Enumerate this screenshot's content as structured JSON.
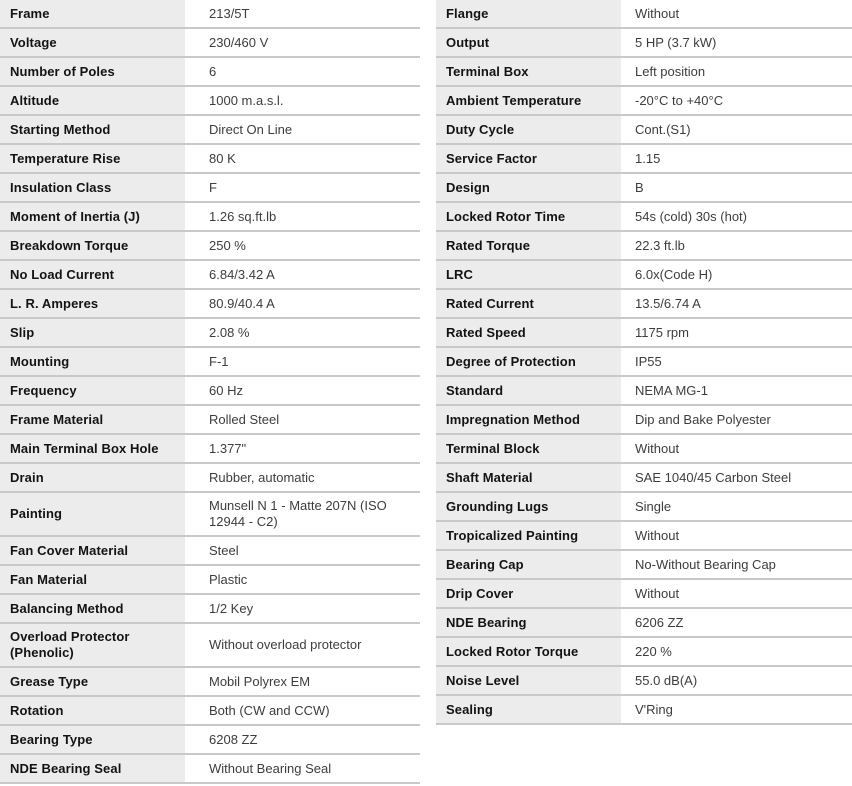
{
  "colors": {
    "label_cell_bg": "#ececec",
    "divider": "#c9c9c9",
    "label_text": "#131313",
    "value_text": "#3d3d3d",
    "page_bg": "#ffffff"
  },
  "tables": {
    "left": {
      "rows": [
        {
          "label": "Frame",
          "value": "213/5T"
        },
        {
          "label": "Voltage",
          "value": "230/460 V"
        },
        {
          "label": "Number of Poles",
          "value": "6"
        },
        {
          "label": "Altitude",
          "value": "1000 m.a.s.l."
        },
        {
          "label": "Starting Method",
          "value": "Direct On Line"
        },
        {
          "label": "Temperature Rise",
          "value": "80 K"
        },
        {
          "label": "Insulation Class",
          "value": "F"
        },
        {
          "label": "Moment of Inertia (J)",
          "value": "1.26 sq.ft.lb"
        },
        {
          "label": "Breakdown Torque",
          "value": "250 %"
        },
        {
          "label": "No Load Current",
          "value": "6.84/3.42 A"
        },
        {
          "label": "L. R. Amperes",
          "value": "80.9/40.4 A"
        },
        {
          "label": "Slip",
          "value": "2.08 %"
        },
        {
          "label": "Mounting",
          "value": "F-1"
        },
        {
          "label": "Frequency",
          "value": "60 Hz"
        },
        {
          "label": "Frame Material",
          "value": "Rolled Steel"
        },
        {
          "label": "Main Terminal Box Hole",
          "value": "1.377\""
        },
        {
          "label": "Drain",
          "value": "Rubber, automatic"
        },
        {
          "label": "Painting",
          "value": "Munsell N 1 - Matte 207N (ISO 12944 - C2)"
        },
        {
          "label": "Fan Cover Material",
          "value": "Steel"
        },
        {
          "label": "Fan Material",
          "value": "Plastic"
        },
        {
          "label": "Balancing Method",
          "value": "1/2 Key"
        },
        {
          "label": "Overload Protector (Phenolic)",
          "value": "Without overload protector"
        },
        {
          "label": "Grease Type",
          "value": "Mobil Polyrex EM"
        },
        {
          "label": "Rotation",
          "value": "Both (CW and CCW)"
        },
        {
          "label": "Bearing Type",
          "value": "6208 ZZ"
        },
        {
          "label": "NDE Bearing Seal",
          "value": "Without Bearing Seal"
        }
      ]
    },
    "right": {
      "rows": [
        {
          "label": "Flange",
          "value": "Without"
        },
        {
          "label": "Output",
          "value": "5 HP (3.7 kW)"
        },
        {
          "label": "Terminal Box",
          "value": "Left position"
        },
        {
          "label": "Ambient Temperature",
          "value": "-20°C to +40°C"
        },
        {
          "label": "Duty Cycle",
          "value": "Cont.(S1)"
        },
        {
          "label": "Service Factor",
          "value": "1.15"
        },
        {
          "label": "Design",
          "value": "B"
        },
        {
          "label": "Locked Rotor Time",
          "value": "54s (cold) 30s (hot)"
        },
        {
          "label": "Rated Torque",
          "value": "22.3 ft.lb"
        },
        {
          "label": "LRC",
          "value": "6.0x(Code H)"
        },
        {
          "label": "Rated Current",
          "value": "13.5/6.74 A"
        },
        {
          "label": "Rated Speed",
          "value": "1175 rpm"
        },
        {
          "label": "Degree of Protection",
          "value": "IP55"
        },
        {
          "label": "Standard",
          "value": "NEMA MG-1"
        },
        {
          "label": "Impregnation Method",
          "value": "Dip and Bake Polyester"
        },
        {
          "label": "Terminal Block",
          "value": "Without"
        },
        {
          "label": "Shaft Material",
          "value": "SAE 1040/45 Carbon Steel"
        },
        {
          "label": "Grounding Lugs",
          "value": "Single"
        },
        {
          "label": "Tropicalized Painting",
          "value": "Without"
        },
        {
          "label": "Bearing Cap",
          "value": "No-Without Bearing Cap"
        },
        {
          "label": "Drip Cover",
          "value": "Without"
        },
        {
          "label": "NDE Bearing",
          "value": "6206 ZZ"
        },
        {
          "label": "Locked Rotor Torque",
          "value": "220 %"
        },
        {
          "label": "Noise Level",
          "value": "55.0 dB(A)"
        },
        {
          "label": "Sealing",
          "value": "V'Ring"
        }
      ]
    }
  }
}
